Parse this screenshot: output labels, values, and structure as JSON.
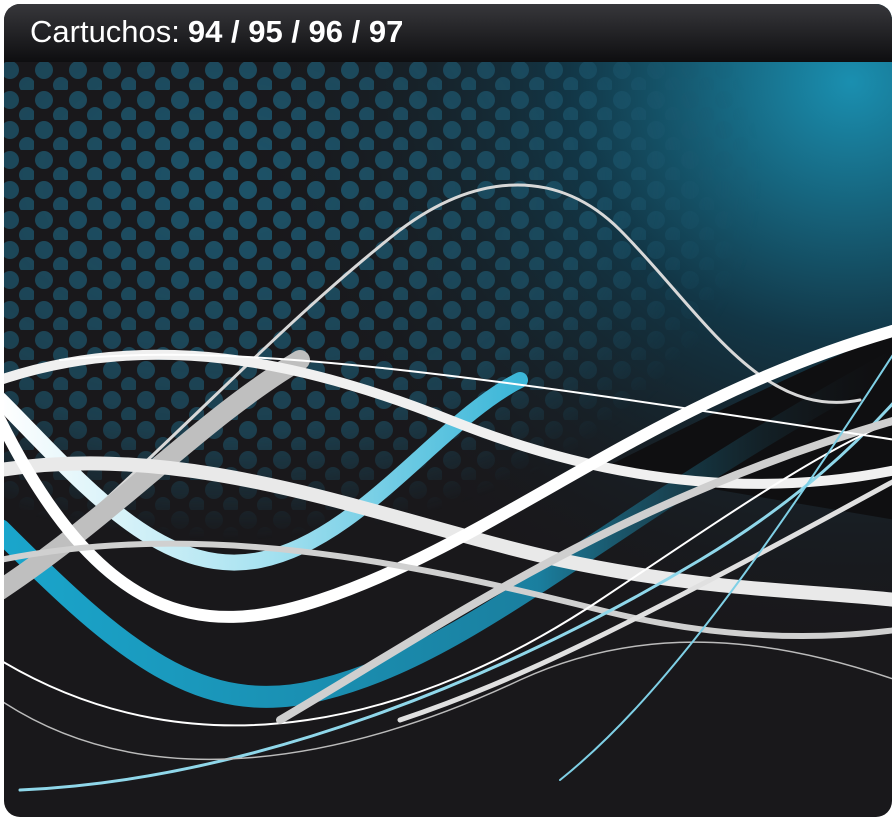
{
  "header": {
    "label": "Cartuchos:",
    "models": "94 / 95 / 96 / 97"
  }
}
